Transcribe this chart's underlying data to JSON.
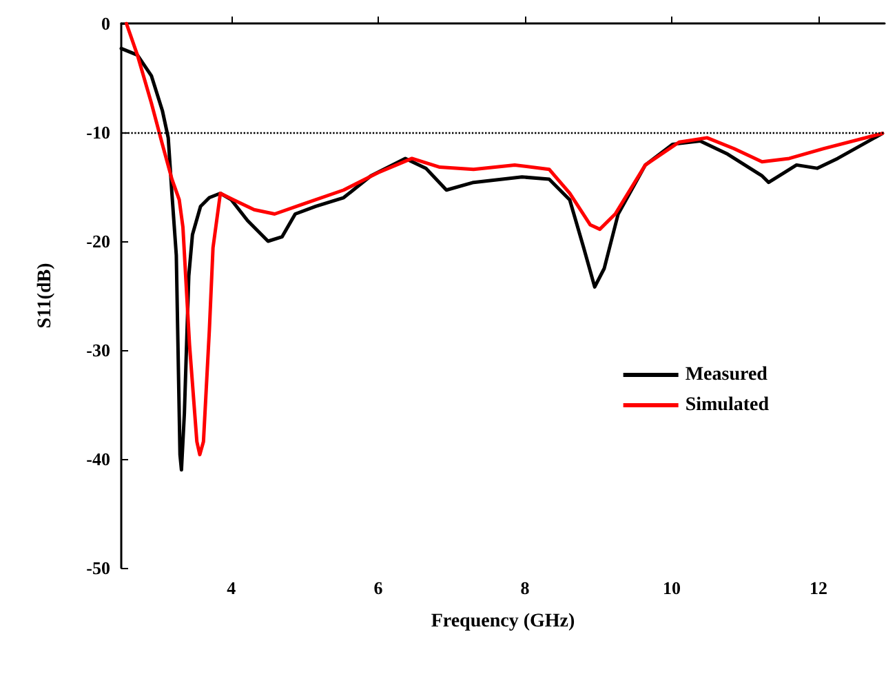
{
  "chart_data": {
    "type": "line",
    "xlabel": "Frequency (GHz)",
    "ylabel": "S11(dB)",
    "xlim": [
      2.5,
      12.9
    ],
    "xticks": [
      4,
      6,
      8,
      10,
      12
    ],
    "ylim": [
      -50,
      0
    ],
    "yticks": [
      -50,
      -40,
      -30,
      -20,
      -10,
      0
    ],
    "grid": false,
    "legend": "right",
    "marker": "none",
    "line_style": "solid",
    "ref_lines": [
      {
        "axis": "y",
        "value": -10,
        "label": null,
        "color": "#000000",
        "line_style": "dotted"
      }
    ],
    "series": [
      {
        "name": "Measured",
        "color": "#000000",
        "x": [
          2.5,
          2.72,
          2.91,
          3.06,
          3.14,
          3.19,
          3.25,
          3.3,
          3.32,
          3.36,
          3.42,
          3.47,
          3.58,
          3.7,
          3.85,
          4.0,
          4.22,
          4.5,
          4.69,
          4.87,
          5.15,
          5.53,
          5.9,
          6.37,
          6.65,
          6.93,
          7.3,
          7.96,
          8.33,
          8.61,
          8.8,
          8.95,
          9.08,
          9.27,
          9.64,
          10.01,
          10.39,
          10.76,
          11.23,
          11.32,
          11.7,
          11.98,
          12.26,
          12.87
        ],
        "values": [
          -2.3,
          -2.9,
          -4.8,
          -8.0,
          -10.5,
          -15.6,
          -21.3,
          -39.6,
          -41,
          -35.8,
          -23.2,
          -19.4,
          -16.8,
          -16,
          -15.6,
          -16.2,
          -18.1,
          -20,
          -19.6,
          -17.5,
          -16.8,
          -16,
          -14,
          -12.4,
          -13.3,
          -15.3,
          -14.6,
          -14.1,
          -14.3,
          -16.2,
          -20.6,
          -24.2,
          -22.5,
          -17.5,
          -13,
          -11.1,
          -10.8,
          -12,
          -14,
          -14.6,
          -13,
          -13.3,
          -12.4,
          -10.1
        ]
      },
      {
        "name": "Simulated",
        "color": "#ff0000",
        "x": [
          2.57,
          2.72,
          2.91,
          3.06,
          3.19,
          3.29,
          3.34,
          3.43,
          3.53,
          3.57,
          3.62,
          3.7,
          3.75,
          3.85,
          4.03,
          4.31,
          4.59,
          4.97,
          5.53,
          6.0,
          6.46,
          6.84,
          7.3,
          7.86,
          8.33,
          8.61,
          8.89,
          9.02,
          9.23,
          9.64,
          10.1,
          10.48,
          10.85,
          11.23,
          11.6,
          12.07,
          12.87
        ],
        "values": [
          0,
          -2.9,
          -7.3,
          -11.1,
          -14.3,
          -16.2,
          -18.7,
          -29.5,
          -38.4,
          -39.6,
          -38.4,
          -28.2,
          -20.6,
          -15.6,
          -16.2,
          -17.1,
          -17.5,
          -16.6,
          -15.3,
          -13.7,
          -12.4,
          -13.2,
          -13.4,
          -13,
          -13.4,
          -15.6,
          -18.5,
          -18.9,
          -17.5,
          -13,
          -10.9,
          -10.5,
          -11.5,
          -12.7,
          -12.4,
          -11.5,
          -10.1
        ]
      }
    ]
  }
}
